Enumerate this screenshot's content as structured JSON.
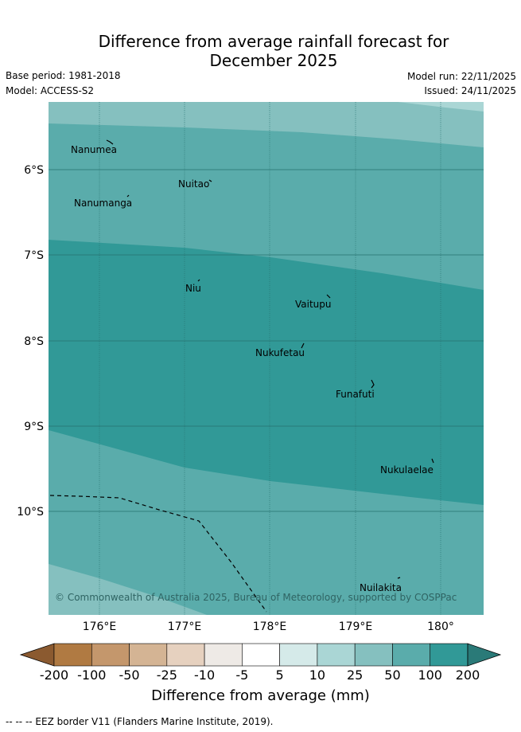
{
  "title_line1": "Difference from average rainfall forecast for",
  "title_line2": "December 2025",
  "base_period": "Base period: 1981-2018",
  "model": "Model: ACCESS-S2",
  "model_run": "Model run: 22/11/2025",
  "issued": "Issued: 24/11/2025",
  "map": {
    "lat_labels": [
      "6°S",
      "7°S",
      "8°S",
      "9°S",
      "10°S"
    ],
    "lon_labels": [
      "176°E",
      "177°E",
      "178°E",
      "179°E",
      "180°"
    ],
    "places": [
      "Nanumea",
      "Nuitao",
      "Nanumanga",
      "Niu",
      "Vaitupu",
      "Nukufetau",
      "Funafuti",
      "Nukulaelae",
      "Nuilakita"
    ],
    "copyright": "© Commonwealth of Australia 2025, Bureau of Meteorology, supported by COSPPac"
  },
  "colorbar": {
    "ticks": [
      "-200",
      "-100",
      "-50",
      "-25",
      "-10",
      "-5",
      "5",
      "10",
      "25",
      "50",
      "100",
      "200"
    ],
    "colors": [
      "#b07a42",
      "#c4976c",
      "#d4b494",
      "#e6d1bf",
      "#eeeae6",
      "#ffffff",
      "#d5eae9",
      "#aad6d5",
      "#85c0bf",
      "#5aacab",
      "#319997"
    ],
    "under_color": "#8b5a30",
    "over_color": "#2a7a78",
    "label": "Difference from average (mm)"
  },
  "footnote": "-- -- -- EEZ border V11 (Flanders Marine Institute, 2019)."
}
